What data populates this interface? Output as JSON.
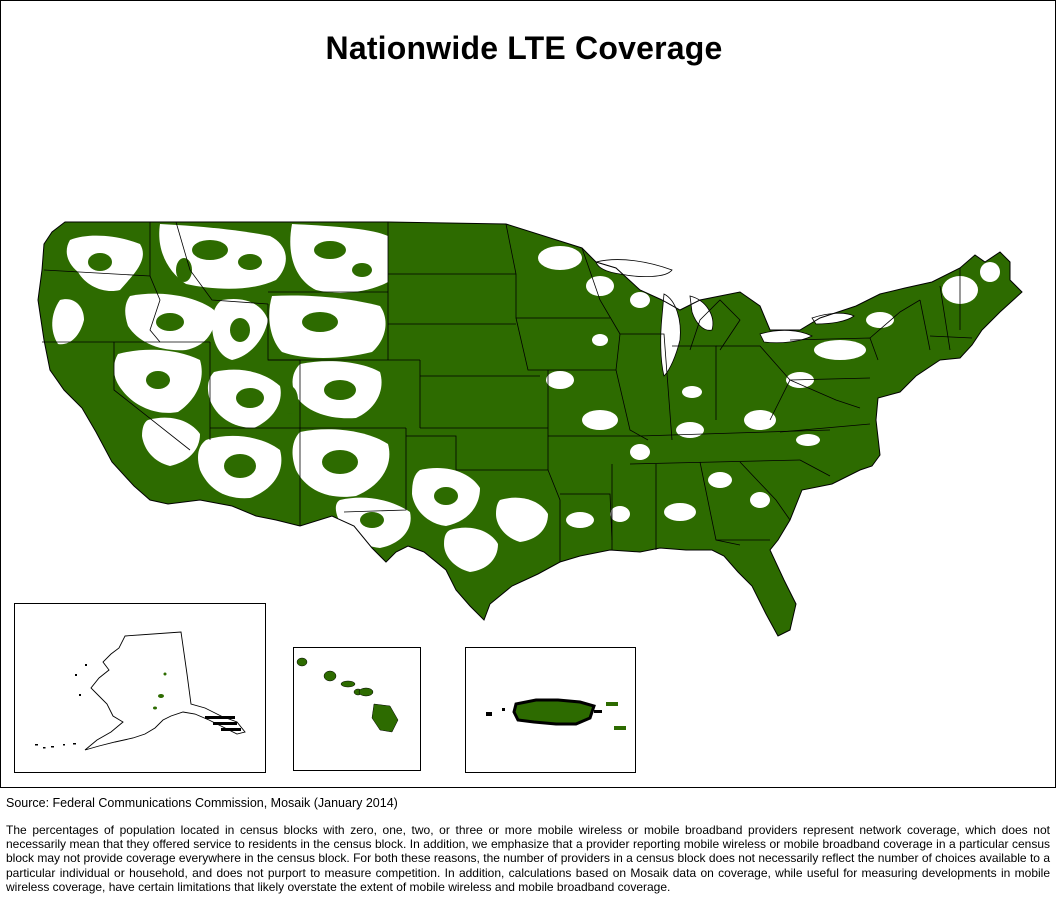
{
  "title": "Nationwide LTE Coverage",
  "source": "Source: Federal Communications Commission, Mosaik (January 2014)",
  "notes": "The percentages of population located in census blocks with zero, one, two, or three or more mobile wireless or mobile broadband providers represent network coverage, which does not necessarily mean that they offered service to residents in the census block. In addition, we emphasize that a provider reporting mobile wireless or mobile broadband coverage in a particular census block may not provide coverage everywhere in the census block. For both these reasons, the number of providers in a census block does not necessarily reflect the number of choices available to a particular individual or household, and does not purport to measure competition. In addition, calculations based on Mosaik data on coverage, while useful for measuring developments in mobile wireless coverage, have certain limitations that likely overstate the extent of mobile wireless and mobile broadband coverage.",
  "colors": {
    "coverage": "#2d6b00",
    "no_coverage": "#ffffff",
    "border": "#000000"
  }
}
